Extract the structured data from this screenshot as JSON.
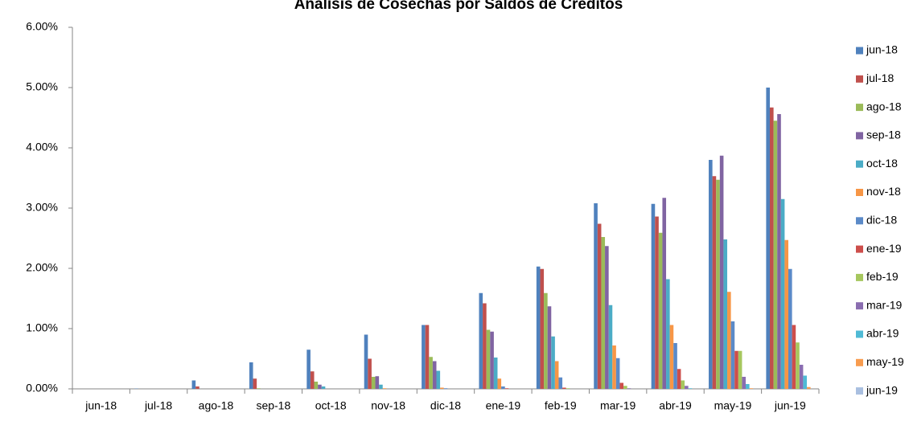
{
  "chart_data": {
    "type": "bar",
    "title": "Análisis de Cosechas por Saldos de Créditos",
    "categories": [
      "jun-18",
      "jul-18",
      "ago-18",
      "sep-18",
      "oct-18",
      "nov-18",
      "dic-18",
      "ene-19",
      "feb-19",
      "mar-19",
      "abr-19",
      "may-19",
      "jun-19"
    ],
    "series": [
      {
        "name": "jun-18",
        "color": "#4f81bd",
        "values": [
          0,
          0.005,
          0.14,
          0.44,
          0.65,
          0.9,
          1.06,
          1.59,
          2.03,
          3.08,
          3.07,
          3.8,
          5.0
        ]
      },
      {
        "name": "jul-18",
        "color": "#c0504d",
        "values": [
          null,
          0,
          0.04,
          0.17,
          0.29,
          0.5,
          1.06,
          1.42,
          1.99,
          2.74,
          2.86,
          3.53,
          4.67
        ]
      },
      {
        "name": "ago-18",
        "color": "#9bbb59",
        "values": [
          null,
          null,
          0,
          0.01,
          0.12,
          0.2,
          0.53,
          0.98,
          1.59,
          2.52,
          2.59,
          3.47,
          4.45
        ]
      },
      {
        "name": "sep-18",
        "color": "#8064a2",
        "values": [
          null,
          null,
          null,
          0,
          0.07,
          0.21,
          0.46,
          0.95,
          1.37,
          2.37,
          3.17,
          3.87,
          4.56
        ]
      },
      {
        "name": "oct-18",
        "color": "#4bacc6",
        "values": [
          null,
          null,
          null,
          null,
          0.04,
          0.07,
          0.3,
          0.52,
          0.87,
          1.39,
          1.82,
          2.48,
          3.15
        ]
      },
      {
        "name": "nov-18",
        "color": "#f79646",
        "values": [
          null,
          null,
          null,
          null,
          null,
          0.01,
          0.02,
          0.17,
          0.46,
          0.72,
          1.06,
          1.61,
          2.47
        ]
      },
      {
        "name": "dic-18",
        "color": "#5b8ac8",
        "values": [
          null,
          null,
          null,
          null,
          null,
          null,
          0.01,
          0.04,
          0.19,
          0.51,
          0.76,
          1.12,
          1.99
        ]
      },
      {
        "name": "ene-19",
        "color": "#cd4e4b",
        "values": [
          null,
          null,
          null,
          null,
          null,
          null,
          null,
          0.01,
          0.02,
          0.1,
          0.33,
          0.63,
          1.06
        ]
      },
      {
        "name": "feb-19",
        "color": "#a6c75e",
        "values": [
          null,
          null,
          null,
          null,
          null,
          null,
          null,
          null,
          0.01,
          0.05,
          0.14,
          0.63,
          0.77
        ]
      },
      {
        "name": "mar-19",
        "color": "#8a6db0",
        "values": [
          null,
          null,
          null,
          null,
          null,
          null,
          null,
          null,
          null,
          0.01,
          0.05,
          0.2,
          0.4
        ]
      },
      {
        "name": "abr-19",
        "color": "#4fbad5",
        "values": [
          null,
          null,
          null,
          null,
          null,
          null,
          null,
          null,
          null,
          null,
          0.01,
          0.08,
          0.22
        ]
      },
      {
        "name": "may-19",
        "color": "#f89c4f",
        "values": [
          null,
          null,
          null,
          null,
          null,
          null,
          null,
          null,
          null,
          null,
          null,
          0.01,
          0.03
        ]
      },
      {
        "name": "jun-19",
        "color": "#a9bfe0",
        "values": [
          null,
          null,
          null,
          null,
          null,
          null,
          null,
          null,
          null,
          null,
          null,
          null,
          0
        ]
      }
    ],
    "ylim": [
      0,
      6
    ],
    "yticks": [
      {
        "value": 0,
        "label": "0.00%"
      },
      {
        "value": 1,
        "label": "1.00%"
      },
      {
        "value": 2,
        "label": "2.00%"
      },
      {
        "value": 3,
        "label": "3.00%"
      },
      {
        "value": 4,
        "label": "4.00%"
      },
      {
        "value": 5,
        "label": "5.00%"
      },
      {
        "value": 6,
        "label": "6.00%"
      }
    ],
    "legend": "right"
  }
}
